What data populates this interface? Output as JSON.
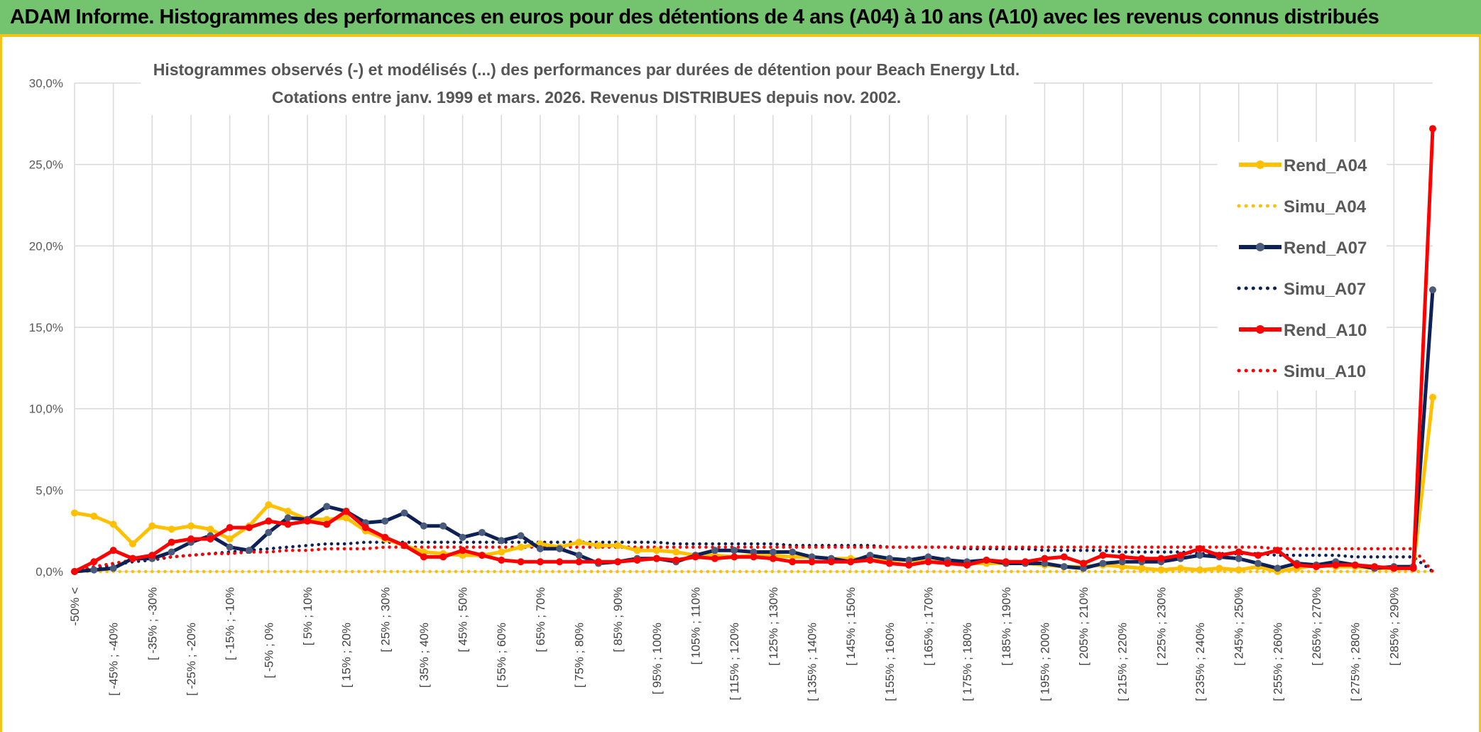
{
  "banner": {
    "title": "ADAM Informe. Histogrammes des performances en euros pour des détentions de 4 ans (A04) à 10 ans (A10) avec les revenus connus distribués"
  },
  "chart_data": {
    "type": "line",
    "title": "Histogrammes observés (-) et modélisés (...) des performances par durées de détention pour Beach Energy Ltd.",
    "subtitle": "Cotations entre janv. 1999 et mars. 2026. Revenus DISTRIBUES depuis nov. 2002.",
    "xlabel": "",
    "ylabel": "",
    "ylim": [
      0,
      30
    ],
    "yticks": [
      "0,0%",
      "5,0%",
      "10,0%",
      "15,0%",
      "20,0%",
      "25,0%",
      "30,0%"
    ],
    "grid": true,
    "legend_position": "right",
    "categories": [
      "-50% <",
      "[ -50% ; -45%",
      "[ -45% ; -40%",
      "[ -40% ; -35%",
      "[ -35% ; -30%",
      "[ -30% ; -25%",
      "[ -25% ; -20%",
      "[ -20% ; -15%",
      "[ -15% ; -10%",
      "[ -10% ; -5%",
      "[ -5% ; 0%",
      "[ 0% ; 5%",
      "[ 5% ; 10%",
      "[ 10% ; 15%",
      "[ 15% ; 20%",
      "[ 20% ; 25%",
      "[ 25% ; 30%",
      "[ 30% ; 35%",
      "[ 35% ; 40%",
      "[ 40% ; 45%",
      "[ 45% ; 50%",
      "[ 50% ; 55%",
      "[ 55% ; 60%",
      "[ 60% ; 65%",
      "[ 65% ; 70%",
      "[ 70% ; 75%",
      "[ 75% ; 80%",
      "[ 80% ; 85%",
      "[ 85% ; 90%",
      "[ 90% ; 95%",
      "[ 95% ; 100%",
      "[ 100% ; 105%",
      "[ 105% ; 110%",
      "[ 110% ; 115%",
      "[ 115% ; 120%",
      "[ 120% ; 125%",
      "[ 125% ; 130%",
      "[ 130% ; 135%",
      "[ 135% ; 140%",
      "[ 140% ; 145%",
      "[ 145% ; 150%",
      "[ 150% ; 155%",
      "[ 155% ; 160%",
      "[ 160% ; 165%",
      "[ 165% ; 170%",
      "[ 170% ; 175%",
      "[ 175% ; 180%",
      "[ 180% ; 185%",
      "[ 185% ; 190%",
      "[ 190% ; 195%",
      "[ 195% ; 200%",
      "[ 200% ; 205%",
      "[ 205% ; 210%",
      "[ 210% ; 215%",
      "[ 215% ; 220%",
      "[ 220% ; 225%",
      "[ 225% ; 230%",
      "[ 230% ; 235%",
      "[ 235% ; 240%",
      "[ 240% ; 245%",
      "[ 245% ; 250%",
      "[ 250% ; 255%",
      "[ 255% ; 260%",
      "[ 260% ; 265%",
      "[ 265% ; 270%",
      "[ 270% ; 275%",
      "[ 275% ; 280%",
      "[ 280% ; 285%",
      "[ 285% ; 290%",
      "[ 290% ; 295%",
      "> 295%"
    ],
    "visible_tick_labels": [
      "-50% <",
      "[ -45% ; -40%",
      "[ -35% ; -30%",
      "[ -25% ; -20%",
      "[ -15% ; -10%",
      "[ -5% ; 0%",
      "[ 5% ; 10%",
      "[ 15% ; 20%",
      "[ 25% ; 30%",
      "[ 35% ; 40%",
      "[ 45% ; 50%",
      "[ 55% ; 60%",
      "[ 65% ; 70%",
      "[ 75% ; 80%",
      "[ 85% ; 90%",
      "[ 95% ; 100%",
      "[ 105% ; 110%",
      "[ 115% ; 120%",
      "[ 125% ; 130%",
      "[ 135% ; 140%",
      "[ 145% ; 150%",
      "[ 155% ; 160%",
      "[ 165% ; 170%",
      "[ 175% ; 180%",
      "[ 185% ; 190%",
      "[ 195% ; 200%",
      "[ 205% ; 210%",
      "[ 215% ; 220%",
      "[ 225% ; 230%",
      "[ 235% ; 240%",
      "[ 245% ; 250%",
      "[ 255% ; 260%",
      "[ 265% ; 270%",
      "[ 275% ; 280%",
      "[ 285% ; 290%"
    ],
    "series": [
      {
        "name": "Rend_A04",
        "color": "#ffc000",
        "style": "solid",
        "marker": true,
        "values": [
          3.6,
          3.4,
          2.9,
          1.7,
          2.8,
          2.6,
          2.8,
          2.6,
          2.0,
          2.8,
          4.1,
          3.7,
          3.2,
          3.2,
          3.3,
          2.5,
          2.0,
          1.6,
          1.2,
          1.1,
          1.0,
          1.0,
          1.2,
          1.5,
          1.7,
          1.5,
          1.8,
          1.6,
          1.6,
          1.3,
          1.3,
          1.2,
          1.0,
          1.0,
          0.9,
          1.0,
          1.0,
          0.9,
          0.9,
          0.8,
          0.8,
          0.7,
          0.7,
          0.7,
          0.6,
          0.6,
          0.5,
          0.5,
          0.5,
          0.5,
          0.4,
          0.3,
          0.3,
          0.4,
          0.3,
          0.2,
          0.1,
          0.2,
          0.1,
          0.2,
          0.1,
          0.3,
          0.0,
          0.2,
          0.4,
          0.3,
          0.3,
          0.2,
          0.2,
          0.2,
          10.7
        ]
      },
      {
        "name": "Simu_A04",
        "color": "#ffc000",
        "style": "dotted",
        "marker": false,
        "values": [
          0.0,
          0.0,
          0.0,
          0.0,
          0.0,
          0.0,
          0.0,
          0.0,
          0.0,
          0.0,
          0.0,
          0.0,
          0.0,
          0.0,
          0.0,
          0.0,
          0.0,
          0.0,
          0.0,
          0.0,
          0.0,
          0.0,
          0.0,
          0.0,
          0.0,
          0.0,
          0.0,
          0.0,
          0.0,
          0.0,
          0.0,
          0.0,
          0.0,
          0.0,
          0.0,
          0.0,
          0.0,
          0.0,
          0.0,
          0.0,
          0.0,
          0.0,
          0.0,
          0.0,
          0.0,
          0.0,
          0.0,
          0.0,
          0.0,
          0.0,
          0.0,
          0.0,
          0.0,
          0.0,
          0.0,
          0.0,
          0.0,
          0.0,
          0.0,
          0.0,
          0.0,
          0.0,
          0.0,
          0.0,
          0.0,
          0.0,
          0.0,
          0.0,
          0.0,
          0.0,
          0.0
        ]
      },
      {
        "name": "Rend_A07",
        "color": "#0d2157",
        "style": "solid",
        "marker": true,
        "values": [
          0.0,
          0.1,
          0.2,
          0.8,
          0.8,
          1.2,
          1.8,
          2.2,
          1.5,
          1.3,
          2.4,
          3.3,
          3.2,
          4.0,
          3.7,
          3.0,
          3.1,
          3.6,
          2.8,
          2.8,
          2.1,
          2.4,
          1.9,
          2.2,
          1.4,
          1.4,
          1.0,
          0.5,
          0.6,
          0.8,
          0.8,
          0.6,
          1.0,
          1.3,
          1.3,
          1.2,
          1.2,
          1.2,
          0.9,
          0.8,
          0.6,
          1.0,
          0.8,
          0.7,
          0.9,
          0.7,
          0.6,
          0.7,
          0.5,
          0.5,
          0.5,
          0.3,
          0.2,
          0.5,
          0.6,
          0.6,
          0.6,
          0.8,
          1.0,
          0.9,
          0.8,
          0.5,
          0.2,
          0.5,
          0.4,
          0.6,
          0.4,
          0.2,
          0.3,
          0.3,
          17.3
        ]
      },
      {
        "name": "Simu_A07",
        "color": "#0d2157",
        "style": "dotted",
        "marker": false,
        "values": [
          0.1,
          0.2,
          0.4,
          0.6,
          0.7,
          0.9,
          1.0,
          1.1,
          1.2,
          1.3,
          1.4,
          1.5,
          1.6,
          1.7,
          1.7,
          1.8,
          1.8,
          1.8,
          1.8,
          1.8,
          1.8,
          1.8,
          1.8,
          1.8,
          1.8,
          1.8,
          1.8,
          1.8,
          1.8,
          1.8,
          1.8,
          1.7,
          1.7,
          1.7,
          1.7,
          1.7,
          1.7,
          1.6,
          1.6,
          1.6,
          1.6,
          1.6,
          1.5,
          1.5,
          1.5,
          1.5,
          1.4,
          1.4,
          1.4,
          1.4,
          1.3,
          1.3,
          1.3,
          1.3,
          1.2,
          1.2,
          1.2,
          1.2,
          1.1,
          1.1,
          1.1,
          1.1,
          1.0,
          1.0,
          1.0,
          1.0,
          0.9,
          0.9,
          0.9,
          0.9,
          0.0
        ]
      },
      {
        "name": "Rend_A10",
        "color": "#ff0000",
        "style": "solid",
        "marker": true,
        "values": [
          0.0,
          0.6,
          1.3,
          0.8,
          1.0,
          1.8,
          2.0,
          2.0,
          2.7,
          2.7,
          3.1,
          2.9,
          3.1,
          2.9,
          3.7,
          2.7,
          2.1,
          1.6,
          0.9,
          0.9,
          1.3,
          1.0,
          0.7,
          0.6,
          0.6,
          0.6,
          0.6,
          0.6,
          0.6,
          0.7,
          0.8,
          0.7,
          0.9,
          0.8,
          0.9,
          0.9,
          0.8,
          0.6,
          0.6,
          0.6,
          0.6,
          0.7,
          0.5,
          0.4,
          0.6,
          0.5,
          0.4,
          0.7,
          0.6,
          0.6,
          0.8,
          0.9,
          0.5,
          1.0,
          0.9,
          0.8,
          0.8,
          1.0,
          1.4,
          1.0,
          1.2,
          1.0,
          1.3,
          0.4,
          0.3,
          0.4,
          0.4,
          0.3,
          0.2,
          0.2,
          27.2
        ]
      },
      {
        "name": "Simu_A10",
        "color": "#ff0000",
        "style": "dotted",
        "marker": false,
        "values": [
          0.0,
          0.3,
          0.5,
          0.7,
          0.8,
          0.9,
          1.0,
          1.1,
          1.1,
          1.2,
          1.2,
          1.3,
          1.3,
          1.4,
          1.4,
          1.4,
          1.5,
          1.5,
          1.5,
          1.5,
          1.5,
          1.5,
          1.5,
          1.5,
          1.5,
          1.5,
          1.5,
          1.5,
          1.5,
          1.5,
          1.5,
          1.5,
          1.5,
          1.5,
          1.5,
          1.5,
          1.5,
          1.5,
          1.5,
          1.5,
          1.5,
          1.5,
          1.5,
          1.5,
          1.5,
          1.5,
          1.5,
          1.5,
          1.5,
          1.5,
          1.5,
          1.5,
          1.5,
          1.5,
          1.5,
          1.5,
          1.5,
          1.5,
          1.5,
          1.5,
          1.5,
          1.5,
          1.4,
          1.4,
          1.4,
          1.4,
          1.4,
          1.4,
          1.4,
          1.4,
          0.0
        ]
      }
    ]
  }
}
